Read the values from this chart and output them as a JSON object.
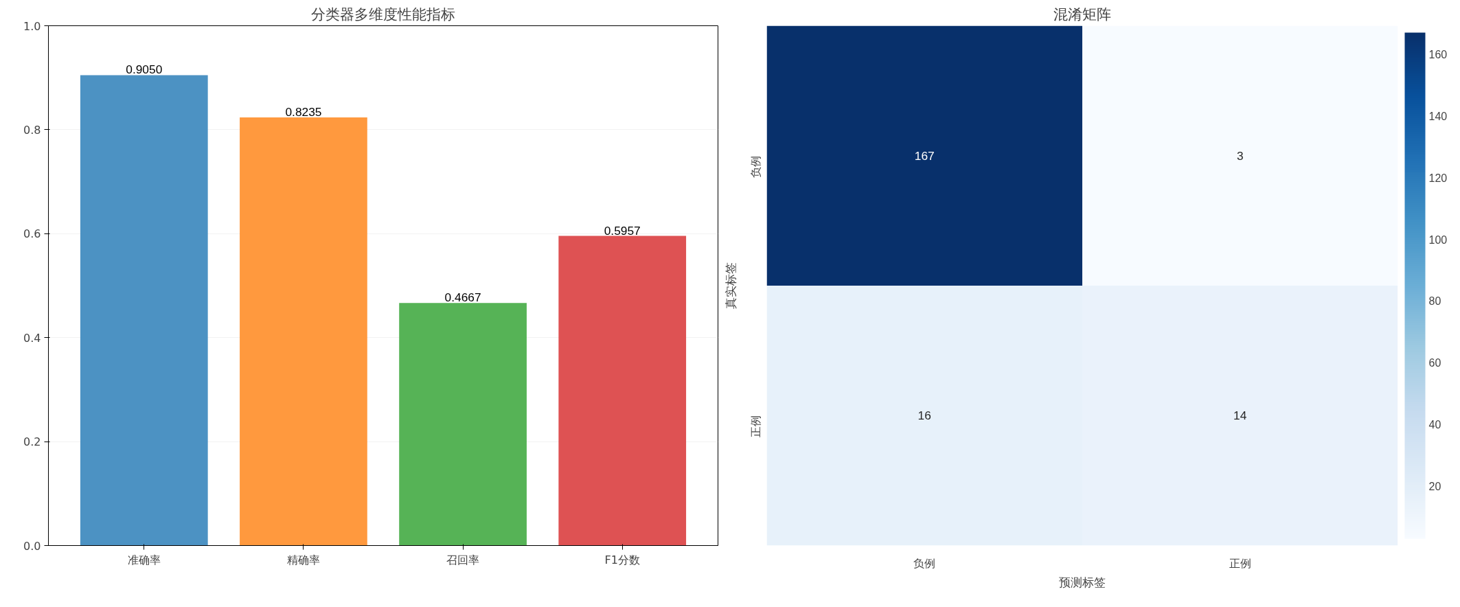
{
  "chart_data": [
    {
      "type": "bar",
      "title": "分类器多维度性能指标",
      "categories": [
        "准确率",
        "精确率",
        "召回率",
        "F1分数"
      ],
      "values": [
        0.905,
        0.8235,
        0.4667,
        0.5957
      ],
      "colors": [
        "#4c92c3",
        "#ff993e",
        "#56b356",
        "#de5253"
      ],
      "value_labels": [
        "0.9050",
        "0.8235",
        "0.4667",
        "0.5957"
      ],
      "ylim": [
        0,
        1
      ],
      "yticks": [
        {
          "value": 0,
          "label": "0.0"
        },
        {
          "value": 0.2,
          "label": "0.2"
        },
        {
          "value": 0.4,
          "label": "0.4"
        },
        {
          "value": 0.6,
          "label": "0.6"
        },
        {
          "value": 0.8,
          "label": "0.8"
        },
        {
          "value": 1,
          "label": "1.0"
        }
      ],
      "grid": "y"
    },
    {
      "type": "heatmap",
      "title": "混淆矩阵",
      "xlabel": "预测标签",
      "ylabel": "真实标签",
      "categories": [
        "负例",
        "正例"
      ],
      "y_categories": [
        "负例",
        "正例"
      ],
      "cells": [
        [
          167,
          3
        ],
        [
          16,
          14
        ]
      ],
      "data_labels": true,
      "clim": [
        3,
        167
      ],
      "cticks": [
        20,
        40,
        60,
        80,
        100,
        120,
        140,
        160
      ]
    }
  ]
}
